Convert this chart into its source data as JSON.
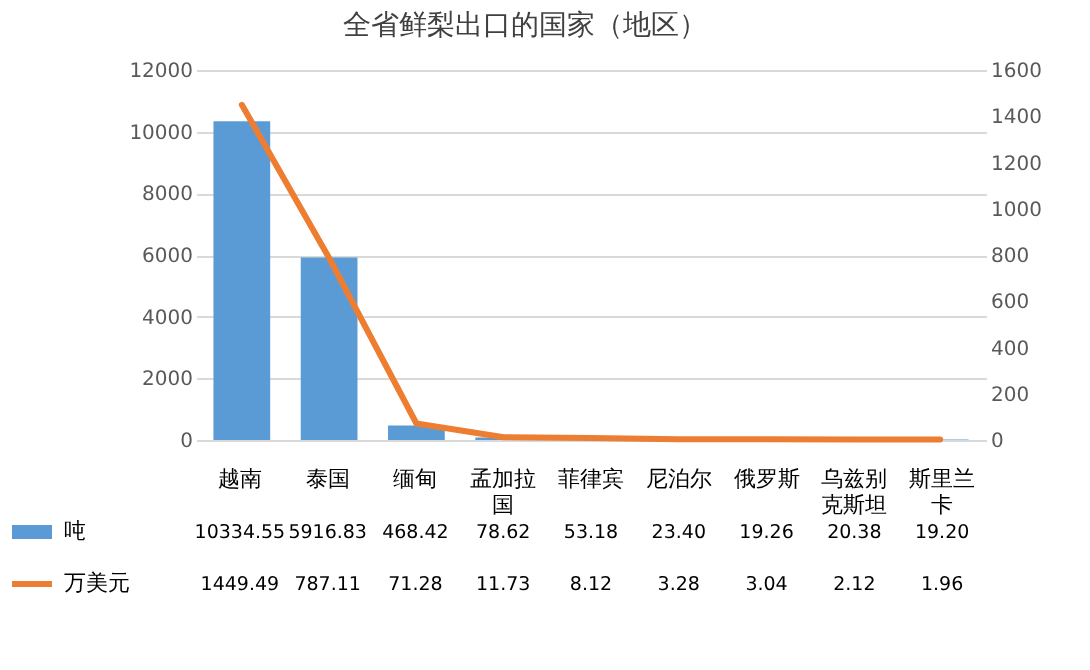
{
  "chart_data": {
    "type": "bar",
    "title": "全省鲜梨出口的国家（地区）",
    "categories": [
      "越南",
      "泰国",
      "缅甸",
      "孟加拉国",
      "菲律宾",
      "尼泊尔",
      "俄罗斯",
      "乌兹别克斯坦",
      "斯里兰卡"
    ],
    "series": [
      {
        "name": "吨",
        "color": "#5b9bd5",
        "values": [
          10334.55,
          5916.83,
          468.42,
          78.62,
          53.18,
          23.4,
          19.26,
          20.38,
          19.2
        ],
        "value_labels": [
          "10334.55",
          "5916.83",
          "468.42",
          "78.62",
          "53.18",
          "23.40",
          "19.26",
          "20.38",
          "19.20"
        ]
      },
      {
        "name": "万美元",
        "type": "line",
        "axis": "y2",
        "color": "#ed7d31",
        "values": [
          1449.49,
          787.11,
          71.28,
          11.73,
          8.12,
          3.28,
          3.04,
          2.12,
          1.96
        ],
        "value_labels": [
          "1449.49",
          "787.11",
          "71.28",
          "11.73",
          "8.12",
          "3.28",
          "3.04",
          "2.12",
          "1.96"
        ]
      }
    ],
    "ylim": [
      0,
      12000
    ],
    "yticks": [
      0,
      2000,
      4000,
      6000,
      8000,
      10000,
      12000
    ],
    "y2lim": [
      0,
      1600
    ],
    "y2ticks": [
      0,
      200,
      400,
      600,
      800,
      1000,
      1200,
      1400,
      1600
    ],
    "grid": "y",
    "legend": "bottom",
    "data_labels": true
  }
}
